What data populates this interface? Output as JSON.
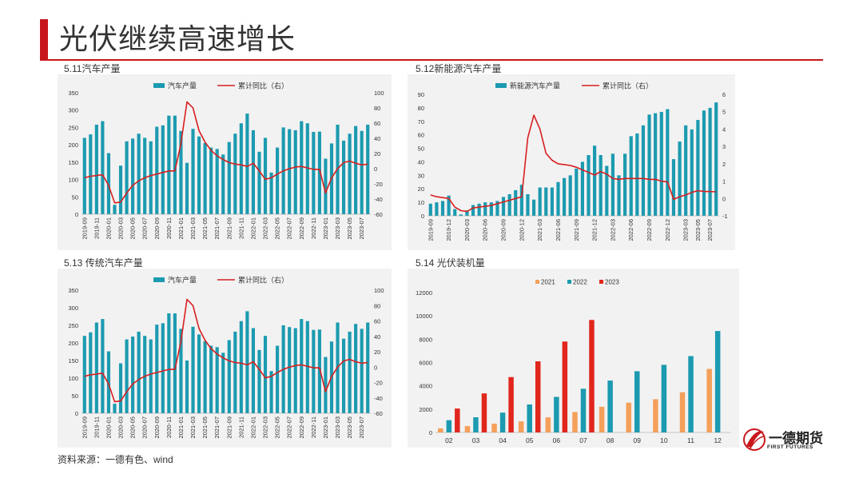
{
  "page": {
    "title": "光伏继续高速增长",
    "source": "资料来源：一德有色、wind",
    "logo": {
      "name": "一德期货",
      "sub": "FIRST FUTURES"
    }
  },
  "colors": {
    "bar": "#1b9ab0",
    "line": "#d81e1e",
    "y2021": "#f4a05a",
    "y2022": "#1b9ab0",
    "y2023": "#e0261d",
    "brand": "#c8161d"
  },
  "charts": {
    "c511": {
      "label": "5.11汽车产量",
      "legend_bar": "汽车产量",
      "legend_line": "累计同比（右）",
      "yleft": [
        "0",
        "50",
        "100",
        "150",
        "200",
        "250",
        "300",
        "350"
      ],
      "yright": [
        "-60",
        "-40",
        "-20",
        "0",
        "20",
        "40",
        "60",
        "80",
        "100"
      ]
    },
    "c512": {
      "label": "5.12新能源汽车产量",
      "legend_bar": "新能源汽车产量",
      "legend_line": "累计同比（右）",
      "yleft": [
        "0",
        "10",
        "20",
        "30",
        "40",
        "50",
        "60",
        "70",
        "80",
        "90"
      ],
      "yright": [
        "-1",
        "0",
        "1",
        "2",
        "3",
        "4",
        "5",
        "6"
      ]
    },
    "c513": {
      "label": "5.13 传统汽车产量",
      "legend_bar": "汽车产量",
      "legend_line": "累计同比（右）",
      "yleft": [
        "0",
        "50",
        "100",
        "150",
        "200",
        "250",
        "300",
        "350"
      ],
      "yright": [
        "-60",
        "-40",
        "-20",
        "0",
        "20",
        "40",
        "60",
        "80",
        "100"
      ]
    },
    "c514": {
      "label": "5.14 光伏装机量",
      "legend": [
        "2021",
        "2022",
        "2023"
      ],
      "yleft": [
        "0",
        "2000",
        "4000",
        "6000",
        "8000",
        "10000",
        "12000"
      ]
    }
  },
  "chart_data": [
    {
      "id": "c511",
      "type": "bar+line",
      "title": "5.11汽车产量",
      "x": [
        "2019-09",
        "2019-10",
        "2019-11",
        "2019-12",
        "2020-01",
        "2020-02",
        "2020-03",
        "2020-04",
        "2020-05",
        "2020-06",
        "2020-07",
        "2020-08",
        "2020-09",
        "2020-10",
        "2020-11",
        "2020-12",
        "2021-01",
        "2021-02",
        "2021-03",
        "2021-04",
        "2021-05",
        "2021-06",
        "2021-07",
        "2021-08",
        "2021-09",
        "2021-10",
        "2021-11",
        "2021-12",
        "2022-01",
        "2022-02",
        "2022-03",
        "2022-04",
        "2022-05",
        "2022-06",
        "2022-07",
        "2022-08",
        "2022-09",
        "2022-10",
        "2022-11",
        "2022-12",
        "2023-01",
        "2023-02",
        "2023-03",
        "2023-04",
        "2023-05",
        "2023-06",
        "2023-07",
        "2023-08"
      ],
      "xticks": [
        "2019-09",
        "2019-11",
        "2020-01",
        "2020-03",
        "2020-05",
        "2020-07",
        "2020-09",
        "2020-11",
        "2021-01",
        "2021-03",
        "2021-05",
        "2021-07",
        "2021-09",
        "2021-11",
        "2022-01",
        "2022-03",
        "2022-05",
        "2022-07",
        "2022-09",
        "2022-11",
        "2023-01",
        "2023-03",
        "2023-05",
        "2023-07"
      ],
      "series": [
        {
          "name": "汽车产量",
          "axis": "left",
          "type": "bar",
          "values": [
            220,
            230,
            258,
            268,
            176,
            27,
            140,
            210,
            218,
            232,
            220,
            210,
            252,
            256,
            284,
            284,
            240,
            148,
            246,
            224,
            205,
            192,
            188,
            172,
            208,
            232,
            262,
            290,
            242,
            180,
            220,
            120,
            192,
            250,
            245,
            242,
            268,
            262,
            237,
            238,
            160,
            204,
            258,
            212,
            232,
            254,
            240,
            258
          ]
        },
        {
          "name": "累计同比（右）",
          "axis": "right",
          "type": "line",
          "values": [
            -12,
            -10,
            -9,
            -8,
            -22,
            -45,
            -44,
            -32,
            -22,
            -16,
            -12,
            -9,
            -7,
            -5,
            -3,
            -3,
            33,
            88,
            80,
            50,
            35,
            24,
            17,
            12,
            8,
            6,
            5,
            3,
            7,
            -3,
            -14,
            -12,
            -7,
            -3,
            0,
            2,
            3,
            1,
            -1,
            -1,
            -32,
            -12,
            0,
            8,
            10,
            7,
            5,
            6
          ]
        }
      ],
      "ylim_left": [
        0,
        350
      ],
      "ylim_right": [
        -60,
        100
      ]
    },
    {
      "id": "c512",
      "type": "bar+line",
      "title": "5.12新能源汽车产量",
      "x": [
        "2019-09",
        "2019-10",
        "2019-11",
        "2019-12",
        "2020-01",
        "2020-02",
        "2020-03",
        "2020-04",
        "2020-05",
        "2020-06",
        "2020-07",
        "2020-08",
        "2020-09",
        "2020-10",
        "2020-11",
        "2020-12",
        "2021-01",
        "2021-02",
        "2021-03",
        "2021-04",
        "2021-05",
        "2021-06",
        "2021-07",
        "2021-08",
        "2021-09",
        "2021-10",
        "2021-11",
        "2021-12",
        "2022-01",
        "2022-02",
        "2022-03",
        "2022-04",
        "2022-05",
        "2022-06",
        "2022-07",
        "2022-08",
        "2022-09",
        "2022-10",
        "2022-11",
        "2022-12",
        "2023-01",
        "2023-02",
        "2023-03",
        "2023-04",
        "2023-05",
        "2023-06",
        "2023-07",
        "2023-08"
      ],
      "xticks": [
        "2019-09",
        "2019-12",
        "2020-03",
        "2020-06",
        "2020-09",
        "2020-12",
        "2021-03",
        "2021-06",
        "2021-09",
        "2021-12",
        "2022-03",
        "2022-06",
        "2022-09",
        "2022-12",
        "2023-03",
        "2023-05",
        "2023-07"
      ],
      "series": [
        {
          "name": "新能源汽车产量",
          "axis": "left",
          "type": "bar",
          "values": [
            9,
            10,
            11,
            15,
            5,
            1,
            4,
            8,
            9,
            10,
            10,
            11,
            14,
            16,
            19,
            23,
            16,
            12,
            21,
            21,
            21,
            25,
            28,
            30,
            35,
            40,
            45,
            52,
            45,
            37,
            46,
            30,
            46,
            59,
            61,
            67,
            75,
            76,
            77,
            79,
            42,
            55,
            67,
            64,
            71,
            78,
            80,
            84
          ]
        },
        {
          "name": "累计同比（右）",
          "axis": "right",
          "type": "line",
          "values": [
            0.2,
            0.1,
            0.05,
            0.0,
            -0.5,
            -0.7,
            -0.75,
            -0.55,
            -0.5,
            -0.45,
            -0.4,
            -0.3,
            -0.2,
            -0.1,
            0.0,
            0.1,
            3.5,
            4.8,
            4.0,
            2.6,
            2.2,
            2.0,
            1.95,
            1.9,
            1.8,
            1.65,
            1.5,
            1.35,
            1.55,
            1.4,
            1.15,
            1.1,
            1.15,
            1.15,
            1.15,
            1.15,
            1.1,
            1.1,
            1.0,
            0.95,
            -0.05,
            0.1,
            0.2,
            0.35,
            0.45,
            0.4,
            0.4,
            0.38
          ]
        }
      ],
      "ylim_left": [
        0,
        90
      ],
      "ylim_right": [
        -1,
        6
      ]
    },
    {
      "id": "c513",
      "type": "bar+line",
      "title": "5.13 传统汽车产量",
      "x": [
        "2019-09",
        "2019-10",
        "2019-11",
        "2019-12",
        "2020-01",
        "2020-02",
        "2020-03",
        "2020-04",
        "2020-05",
        "2020-06",
        "2020-07",
        "2020-08",
        "2020-09",
        "2020-10",
        "2020-11",
        "2020-12",
        "2021-01",
        "2021-02",
        "2021-03",
        "2021-04",
        "2021-05",
        "2021-06",
        "2021-07",
        "2021-08",
        "2021-09",
        "2021-10",
        "2021-11",
        "2021-12",
        "2022-01",
        "2022-02",
        "2022-03",
        "2022-04",
        "2022-05",
        "2022-06",
        "2022-07",
        "2022-08",
        "2022-09",
        "2022-10",
        "2022-11",
        "2022-12",
        "2023-01",
        "2023-02",
        "2023-03",
        "2023-04",
        "2023-05",
        "2023-06",
        "2023-07",
        "2023-08"
      ],
      "xticks": [
        "2019-09",
        "2019-11",
        "2020-01",
        "2020-03",
        "2020-05",
        "2020-07",
        "2020-09",
        "2020-11",
        "2021-01",
        "2021-03",
        "2021-05",
        "2021-07",
        "2021-09",
        "2021-11",
        "2022-01",
        "2022-03",
        "2022-05",
        "2022-07",
        "2022-09",
        "2022-11",
        "2023-01",
        "2023-03",
        "2023-05",
        "2023-07"
      ],
      "series": [
        {
          "name": "汽车产量",
          "axis": "left",
          "type": "bar",
          "values": [
            220,
            230,
            258,
            268,
            176,
            27,
            142,
            210,
            218,
            232,
            220,
            210,
            252,
            256,
            284,
            284,
            240,
            150,
            246,
            224,
            205,
            192,
            188,
            172,
            208,
            232,
            262,
            290,
            242,
            180,
            220,
            120,
            192,
            250,
            245,
            242,
            268,
            262,
            237,
            238,
            160,
            204,
            258,
            212,
            232,
            254,
            240,
            258
          ]
        },
        {
          "name": "累计同比（右）",
          "axis": "right",
          "type": "line",
          "values": [
            -12,
            -10,
            -9,
            -8,
            -22,
            -45,
            -44,
            -32,
            -22,
            -16,
            -12,
            -9,
            -7,
            -5,
            -3,
            -3,
            33,
            88,
            80,
            50,
            35,
            24,
            17,
            12,
            8,
            6,
            5,
            3,
            7,
            -3,
            -14,
            -12,
            -7,
            -3,
            0,
            2,
            3,
            1,
            -1,
            -1,
            -32,
            -12,
            0,
            8,
            10,
            7,
            5,
            6
          ]
        }
      ],
      "ylim_left": [
        0,
        350
      ],
      "ylim_right": [
        -60,
        100
      ]
    },
    {
      "id": "c514",
      "type": "bar",
      "title": "5.14 光伏装机量",
      "categories": [
        "02",
        "03",
        "04",
        "05",
        "06",
        "07",
        "08",
        "09",
        "10",
        "11",
        "12"
      ],
      "series": [
        {
          "name": "2021",
          "values": [
            350,
            550,
            750,
            950,
            1300,
            1750,
            2200,
            2550,
            2850,
            3450,
            5450
          ]
        },
        {
          "name": "2022",
          "values": [
            1050,
            1300,
            1700,
            2400,
            3050,
            3750,
            4450,
            5250,
            5800,
            6550,
            8700
          ]
        },
        {
          "name": "2023",
          "values": [
            2050,
            3350,
            4750,
            6100,
            7800,
            9650,
            null,
            null,
            null,
            null,
            null
          ]
        }
      ],
      "ylim": [
        0,
        12000
      ]
    }
  ]
}
